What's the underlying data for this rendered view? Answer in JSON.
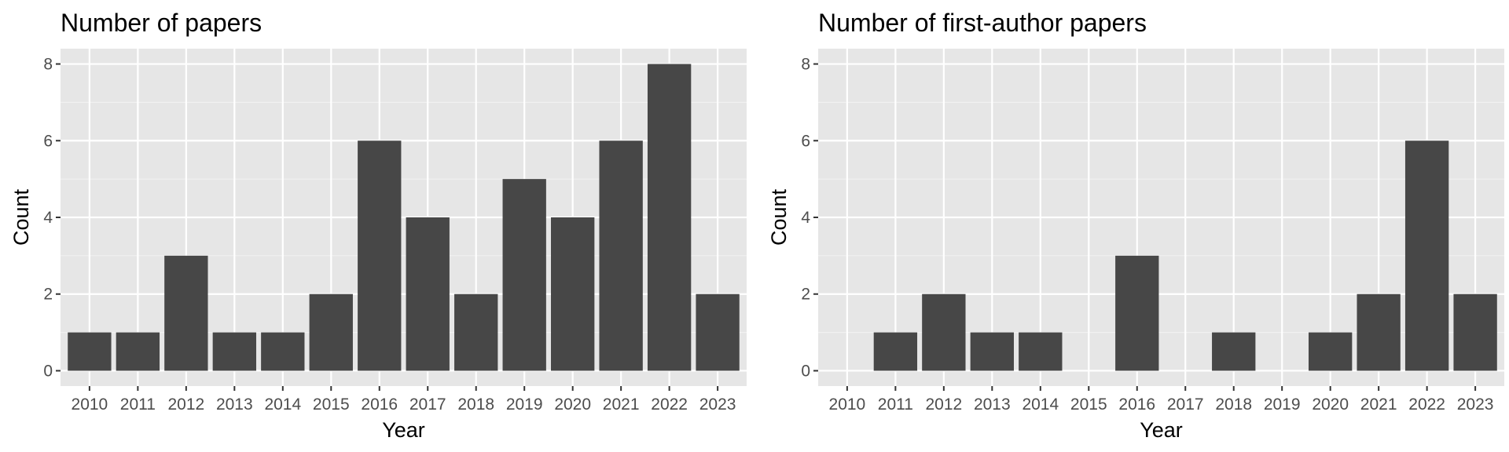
{
  "chart_data": [
    {
      "type": "bar",
      "title": "Number of papers",
      "xlabel": "Year",
      "ylabel": "Count",
      "categories": [
        "2010",
        "2011",
        "2012",
        "2013",
        "2014",
        "2015",
        "2016",
        "2017",
        "2018",
        "2019",
        "2020",
        "2021",
        "2022",
        "2023"
      ],
      "values": [
        1,
        1,
        3,
        1,
        1,
        2,
        6,
        4,
        2,
        5,
        4,
        6,
        8,
        2
      ],
      "ylim": [
        0,
        8.4
      ],
      "yticks": [
        0,
        2,
        4,
        6,
        8
      ],
      "grid": true,
      "bar_color": "#474747",
      "panel_color": "#e6e6e6"
    },
    {
      "type": "bar",
      "title": "Number of first-author papers",
      "xlabel": "Year",
      "ylabel": "Count",
      "categories": [
        "2010",
        "2011",
        "2012",
        "2013",
        "2014",
        "2015",
        "2016",
        "2017",
        "2018",
        "2019",
        "2020",
        "2021",
        "2022",
        "2023"
      ],
      "values": [
        0,
        1,
        2,
        1,
        1,
        0,
        3,
        0,
        1,
        0,
        1,
        2,
        6,
        2
      ],
      "ylim": [
        0,
        8.4
      ],
      "yticks": [
        0,
        2,
        4,
        6,
        8
      ],
      "grid": true,
      "bar_color": "#474747",
      "panel_color": "#e6e6e6"
    }
  ]
}
